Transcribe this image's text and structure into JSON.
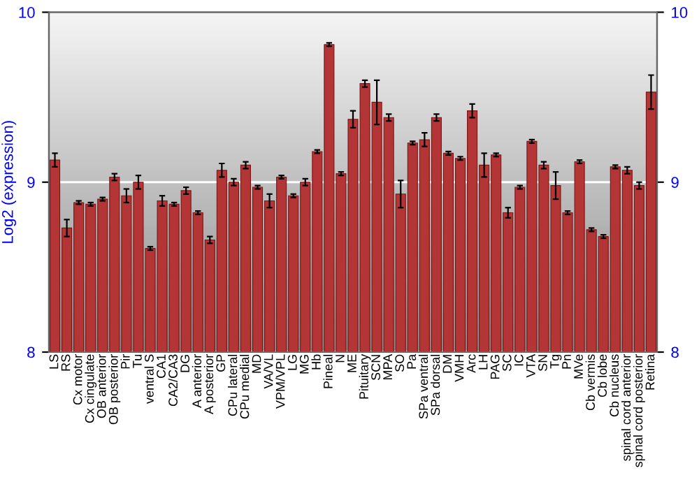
{
  "chart_data": {
    "type": "bar",
    "ylabel": "Log2 (expression)",
    "categories": [
      "LS",
      "RS",
      "Cx motor",
      "Cx cingulate",
      "OB anterior",
      "OB posterior",
      "Pir",
      "Tu",
      "ventral S",
      "CA1",
      "CA2/CA3",
      "DG",
      "A anterior",
      "A posterior",
      "GP",
      "CPu lateral",
      "CPu medial",
      "MD",
      "VA/VL",
      "VPM/VPL",
      "LG",
      "MG",
      "Hb",
      "Pineal",
      "N",
      "ME",
      "Pituitary",
      "SCN",
      "MPA",
      "SO",
      "Pa",
      "SPa ventral",
      "SPa dorsal",
      "DM",
      "VMH",
      "Arc",
      "LH",
      "PAG",
      "SC",
      "IC",
      "VTA",
      "SN",
      "Tg",
      "Pn",
      "MVe",
      "Cb vermis",
      "Cb lobe",
      "Cb nucleus",
      "spinal cord anterior",
      "spinal cord posterior",
      "Retina"
    ],
    "values": [
      9.13,
      8.73,
      8.88,
      8.87,
      8.9,
      9.03,
      8.92,
      9.0,
      8.61,
      8.89,
      8.87,
      8.95,
      8.82,
      8.66,
      9.07,
      9.0,
      9.1,
      8.97,
      8.89,
      9.03,
      8.92,
      9.0,
      9.18,
      9.81,
      9.05,
      9.37,
      9.58,
      9.47,
      9.38,
      8.93,
      9.23,
      9.25,
      9.38,
      9.17,
      9.14,
      9.42,
      9.1,
      9.16,
      8.82,
      8.97,
      9.24,
      9.1,
      8.98,
      8.82,
      9.12,
      8.72,
      8.68,
      9.09,
      9.07,
      8.98,
      9.53
    ],
    "errors": [
      0.04,
      0.05,
      0.01,
      0.01,
      0.01,
      0.02,
      0.04,
      0.04,
      0.01,
      0.03,
      0.01,
      0.02,
      0.01,
      0.02,
      0.04,
      0.02,
      0.02,
      0.01,
      0.04,
      0.01,
      0.01,
      0.02,
      0.01,
      0.01,
      0.01,
      0.05,
      0.02,
      0.13,
      0.02,
      0.08,
      0.01,
      0.04,
      0.02,
      0.01,
      0.01,
      0.04,
      0.07,
      0.01,
      0.03,
      0.01,
      0.01,
      0.02,
      0.08,
      0.01,
      0.01,
      0.01,
      0.01,
      0.01,
      0.02,
      0.02,
      0.1
    ],
    "color": "#b33535",
    "ylim": [
      8,
      10
    ],
    "yticks": [
      8,
      9,
      10
    ],
    "y2lim": [
      8,
      10
    ],
    "y2ticks": [
      8,
      9,
      10
    ],
    "grid": "y",
    "legend": false
  }
}
